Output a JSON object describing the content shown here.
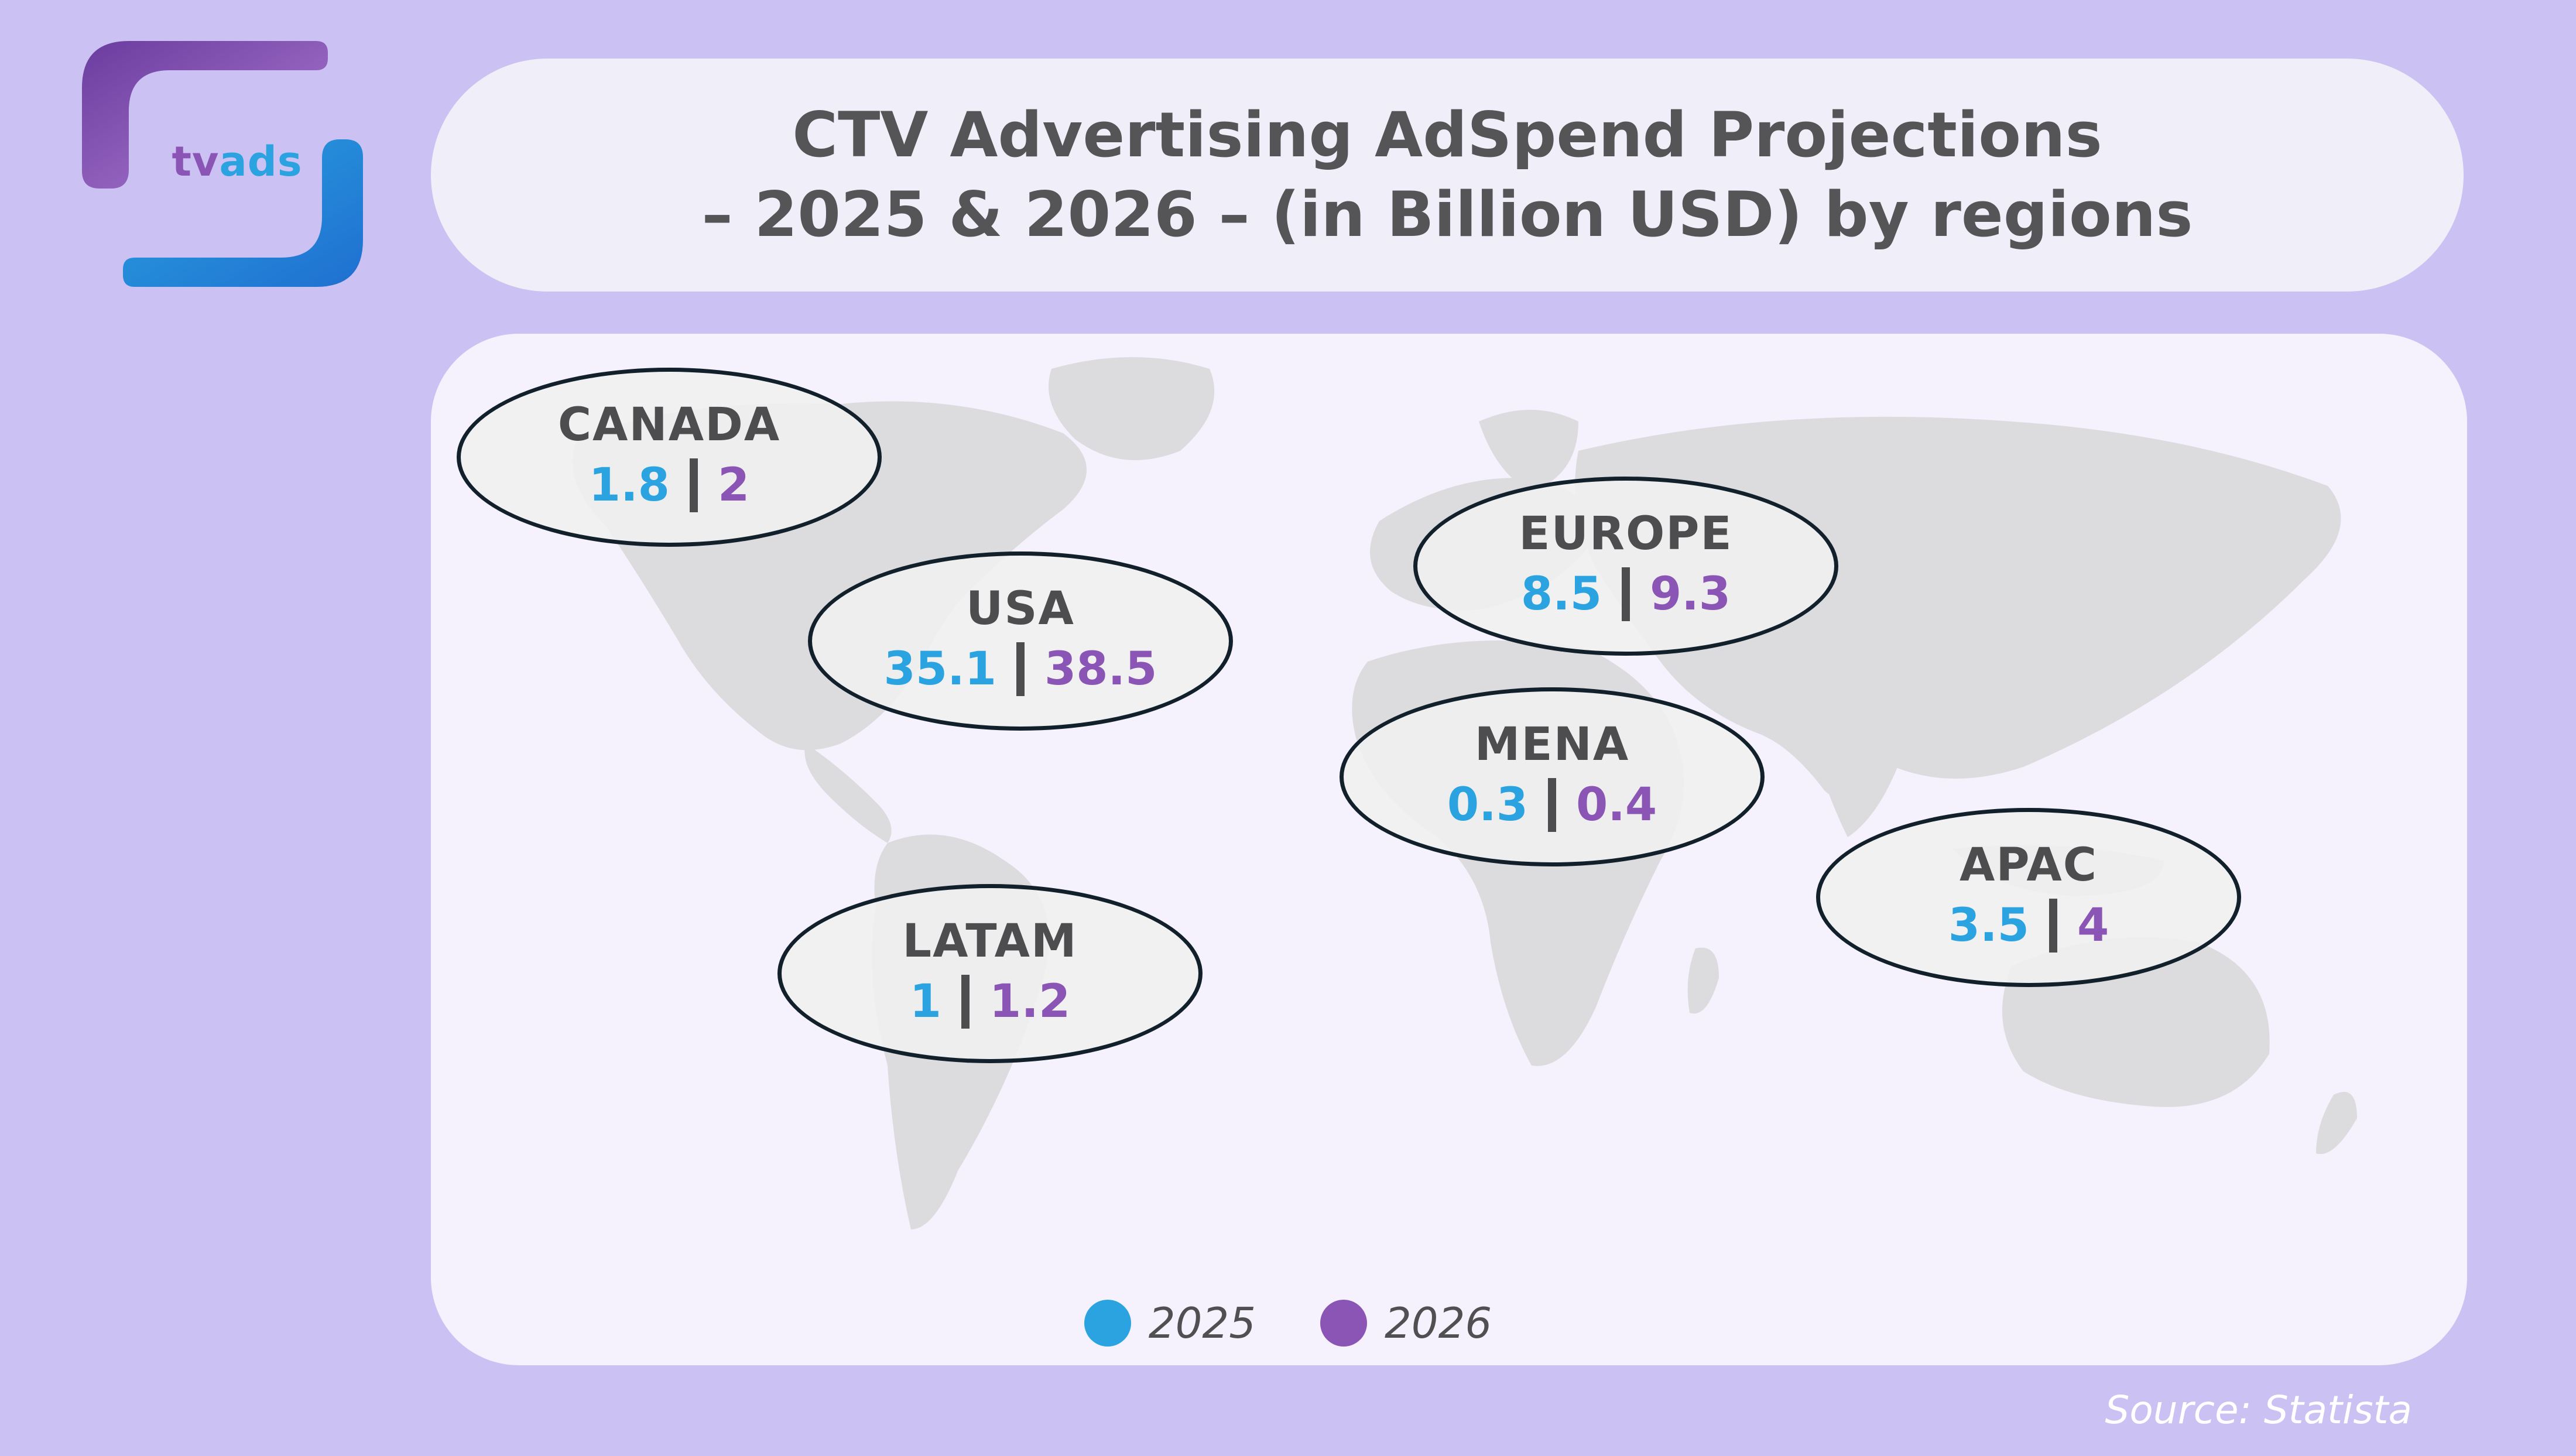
{
  "logo": {
    "part1": "tv",
    "part2": "ads"
  },
  "title": {
    "line1": "CTV Advertising AdSpend Projections",
    "line2": "– 2025 & 2026 – (in Billion USD) by regions"
  },
  "chart_data": {
    "type": "table",
    "title": "CTV Advertising AdSpend Projections – 2025 & 2026 – (in Billion USD) by regions",
    "series": [
      {
        "name": "2025",
        "color": "#2aa3e0"
      },
      {
        "name": "2026",
        "color": "#8a55b4"
      }
    ],
    "regions": [
      {
        "name": "CANADA",
        "v2025": "1.8",
        "v2026": "2"
      },
      {
        "name": "USA",
        "v2025": "35.1",
        "v2026": "38.5"
      },
      {
        "name": "EUROPE",
        "v2025": "8.5",
        "v2026": "9.3"
      },
      {
        "name": "MENA",
        "v2025": "0.3",
        "v2026": "0.4"
      },
      {
        "name": "APAC",
        "v2025": "3.5",
        "v2026": "4"
      },
      {
        "name": "LATAM",
        "v2025": "1",
        "v2026": "1.2"
      }
    ]
  },
  "legend": {
    "item1": "2025",
    "item2": "2026"
  },
  "source": "Source: Statista",
  "colors": {
    "accent2025": "#2aa3e0",
    "accent2026": "#8a55b4",
    "background": "#cbc2f3"
  }
}
